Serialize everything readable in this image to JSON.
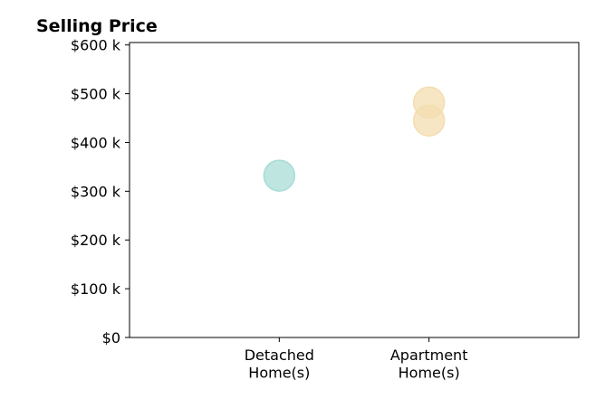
{
  "chart_data": {
    "type": "scatter",
    "title": "Selling Price",
    "xlabel": "",
    "ylabel": "",
    "categories": [
      [
        "Detached",
        "Home(s)"
      ],
      [
        "Apartment",
        "Home(s)"
      ]
    ],
    "y_ticks": [
      {
        "value": 0,
        "label": "$0"
      },
      {
        "value": 100000,
        "label": "$100 k"
      },
      {
        "value": 200000,
        "label": "$200 k"
      },
      {
        "value": 300000,
        "label": "$300 k"
      },
      {
        "value": 400000,
        "label": "$400 k"
      },
      {
        "value": 500000,
        "label": "$500 k"
      },
      {
        "value": 600000,
        "label": "$600 k"
      }
    ],
    "ylim": [
      0,
      605000
    ],
    "xlim": [
      0,
      3
    ],
    "grid": false,
    "points": [
      {
        "category": "Detached Home(s)",
        "x": 1,
        "y": 332000,
        "color": "#a8dcd6"
      },
      {
        "category": "Apartment Home(s)",
        "x": 2,
        "y": 482000,
        "color": "#f4ddb0"
      },
      {
        "category": "Apartment Home(s)",
        "x": 2,
        "y": 445000,
        "color": "#f4ddb0"
      }
    ]
  }
}
